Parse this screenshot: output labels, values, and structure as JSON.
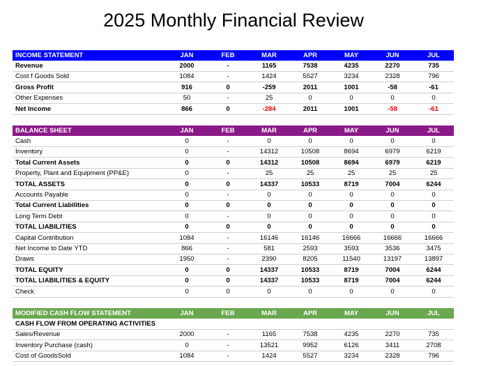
{
  "title": "2025 Monthly Financial Review",
  "sections": [
    {
      "title": "INCOME STATEMENT",
      "color": "#0000ff",
      "columns": [
        "JAN",
        "FEB",
        "MAR",
        "APR",
        "MAY",
        "JUN",
        "JUL"
      ],
      "rows": [
        {
          "label": "Revenue",
          "bold": true,
          "values": [
            "2000",
            "-",
            "1165",
            "7538",
            "4235",
            "2270",
            "735"
          ]
        },
        {
          "label": "Cost f Goods Sold",
          "bold": false,
          "values": [
            "1084",
            "-",
            "1424",
            "5527",
            "3234",
            "2328",
            "796"
          ]
        },
        {
          "label": "Gross Profit",
          "bold": true,
          "values": [
            "916",
            "0",
            "-259",
            "2011",
            "1001",
            "-58",
            "-61"
          ]
        },
        {
          "label": "Other Expenses",
          "bold": false,
          "values": [
            "50",
            "-",
            "25",
            "0",
            "0",
            "0",
            "0"
          ]
        },
        {
          "label": "Net Income",
          "bold": true,
          "negative_color": "#e00000",
          "values": [
            "866",
            "0",
            "-284",
            "2011",
            "1001",
            "-58",
            "-61"
          ]
        }
      ]
    },
    {
      "title": "BALANCE SHEET",
      "color": "#8b1a89",
      "columns": [
        "JAN",
        "FEB",
        "MAR",
        "APR",
        "MAY",
        "JUN",
        "JUL"
      ],
      "rows": [
        {
          "label": "Cash",
          "bold": false,
          "values": [
            "0",
            "-",
            "0",
            "0",
            "0",
            "0",
            "0"
          ]
        },
        {
          "label": "Inventory",
          "bold": false,
          "values": [
            "0",
            "-",
            "14312",
            "10508",
            "8694",
            "6979",
            "6219"
          ]
        },
        {
          "label": "Total Current Assets",
          "bold": true,
          "values": [
            "0",
            "0",
            "14312",
            "10508",
            "8694",
            "6979",
            "6219"
          ]
        },
        {
          "label": "Property, Plant and Equipment (PP&E)",
          "bold": false,
          "values": [
            "0",
            "-",
            "25",
            "25",
            "25",
            "25",
            "25"
          ]
        },
        {
          "label": "TOTAL  ASSETS",
          "bold": true,
          "values": [
            "0",
            "0",
            "14337",
            "10533",
            "8719",
            "7004",
            "6244"
          ]
        },
        {
          "label": "Accounts Payable",
          "bold": false,
          "values": [
            "0",
            "-",
            "0",
            "0",
            "0",
            "0",
            "0"
          ]
        },
        {
          "label": "Total Current Liabilities",
          "bold": true,
          "values": [
            "0",
            "0",
            "0",
            "0",
            "0",
            "0",
            "0"
          ]
        },
        {
          "label": "Long Term Debt",
          "bold": false,
          "values": [
            "0",
            "-",
            "0",
            "0",
            "0",
            "0",
            "0"
          ]
        },
        {
          "label": "TOTAL LIABILITIES",
          "bold": true,
          "values": [
            "0",
            "0",
            "0",
            "0",
            "0",
            "0",
            "0"
          ]
        },
        {
          "label": "Capital Contribution",
          "bold": false,
          "values": [
            "1084",
            "-",
            "16146",
            "16146",
            "16666",
            "16666",
            "16666"
          ]
        },
        {
          "label": "Net Income to Date YTD",
          "bold": false,
          "values": [
            "866",
            "-",
            "581",
            "2593",
            "3593",
            "3536",
            "3475"
          ]
        },
        {
          "label": "Draws",
          "bold": false,
          "values": [
            "1950",
            "-",
            "2390",
            "8205",
            "11540",
            "13197",
            "13897"
          ]
        },
        {
          "label": "TOTAL EQUITY",
          "bold": true,
          "values": [
            "0",
            "0",
            "14337",
            "10533",
            "8719",
            "7004",
            "6244"
          ]
        },
        {
          "label": "TOTAL LIABILITIES & EQUITY",
          "bold": true,
          "values": [
            "0",
            "0",
            "14337",
            "10533",
            "8719",
            "7004",
            "6244"
          ]
        },
        {
          "label": "Check",
          "bold": false,
          "values": [
            "0",
            "0",
            "0",
            "0",
            "0",
            "0",
            "0"
          ]
        }
      ]
    },
    {
      "title": "MODIFIED CASH FLOW STATEMENT",
      "color": "#6aa84f",
      "columns": [
        "JAN",
        "FEB",
        "MAR",
        "APR",
        "MAY",
        "JUN",
        "JUL"
      ],
      "rows": [
        {
          "label": "CASH FLOW FROM OPERATING ACTIVITIES",
          "bold": true
        },
        {
          "label": "Sales/Revenue",
          "bold": false,
          "values": [
            "2000",
            "-",
            "1165",
            "7538",
            "4235",
            "2270",
            "735"
          ]
        },
        {
          "label": "Inventory Purchase (cash)",
          "bold": false,
          "values": [
            "0",
            "-",
            "13521",
            "9952",
            "6126",
            "3411",
            "2708"
          ]
        },
        {
          "label": "Cost of GoodsSold",
          "bold": false,
          "values": [
            "1084",
            "-",
            "1424",
            "5527",
            "3234",
            "2328",
            "796"
          ]
        }
      ]
    }
  ]
}
